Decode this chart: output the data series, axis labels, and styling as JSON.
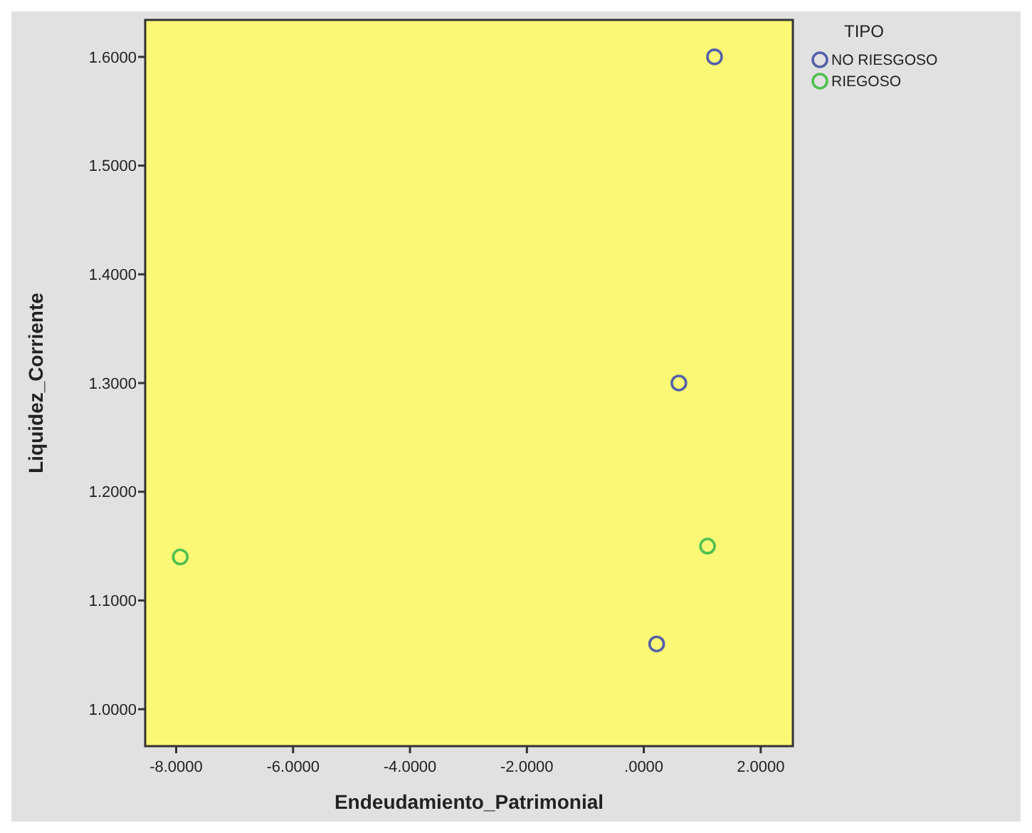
{
  "chart_data": {
    "type": "scatter",
    "xlabel": "Endeudamiento_Patrimonial",
    "ylabel": "Liquidez_Corriente",
    "legend_title": "TIPO",
    "legend": "top right",
    "marker": "circle",
    "grid": false,
    "xlim": [
      -8.53,
      2.55
    ],
    "ylim": [
      0.966,
      1.634
    ],
    "xticks": [
      {
        "value": -8,
        "label": "-8.0000"
      },
      {
        "value": -6,
        "label": "-6.0000"
      },
      {
        "value": -4,
        "label": "-4.0000"
      },
      {
        "value": -2,
        "label": "-2.0000"
      },
      {
        "value": 0,
        "label": ".0000"
      },
      {
        "value": 2,
        "label": "2.0000"
      }
    ],
    "yticks": [
      {
        "value": 1,
        "label": "1.0000"
      },
      {
        "value": 1.1,
        "label": "1.1000"
      },
      {
        "value": 1.2,
        "label": "1.2000"
      },
      {
        "value": 1.3,
        "label": "1.3000"
      },
      {
        "value": 1.4,
        "label": "1.4000"
      },
      {
        "value": 1.5,
        "label": "1.5000"
      },
      {
        "value": 1.6,
        "label": "1.6000"
      }
    ],
    "series": [
      {
        "name": "NO RIESGOSO",
        "color": "#5461a8",
        "x": [
          1.21,
          0.6,
          0.22
        ],
        "values": [
          1.6,
          1.3,
          1.06
        ]
      },
      {
        "name": "RIEGOSO",
        "color": "#4fc14f",
        "x": [
          -7.93,
          1.09
        ],
        "values": [
          1.14,
          1.15
        ]
      }
    ]
  }
}
